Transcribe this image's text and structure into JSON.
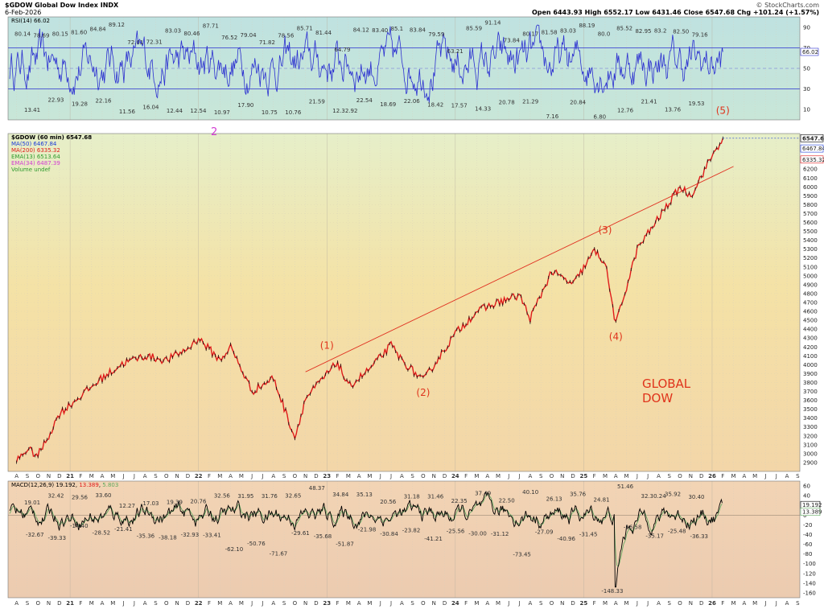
{
  "header": {
    "symbol_line": "$GDOW Global Dow Index INDX",
    "date": "6-Feb-2026",
    "source": "© StockCharts.com",
    "quote": "Open 6443.93  High 6552.17  Low 6431.46  Close 6547.68  Chg +101.24 (+1.57%)"
  },
  "colors": {
    "rsi_line": "#2b2fd0",
    "price": "#e01b1b",
    "ma50": "#1b3bd8",
    "ma200": "#e01b1b",
    "ema13": "#2e9a2e",
    "ema34": "#d23bd2",
    "macd_line": "#000000",
    "signal_line": "#5ea95e",
    "trendline": "#e03020",
    "label_red": "#e0341c",
    "label_magenta": "#d23bd2"
  },
  "chart_data": [
    {
      "type": "line",
      "title": "RSI(14) 66.02",
      "series": [
        {
          "name": "RSI(14)",
          "last": 66.02
        }
      ],
      "ylim": [
        0,
        100
      ],
      "yticks": [
        10,
        30,
        50,
        70,
        90
      ],
      "levels": [
        30,
        70
      ],
      "annotations": [
        "80.14",
        "78.69",
        "80.15",
        "81.60",
        "84.84",
        "89.12",
        "72.01",
        "72.31",
        "83.03",
        "80.46",
        "87.71",
        "76.52",
        "79.04",
        "71.82",
        "78.56",
        "85.71",
        "81.44",
        "64.79",
        "84.12",
        "83.40",
        "85.1",
        "83.84",
        "79.59",
        "63.21",
        "85.59",
        "91.14",
        "73.84",
        "80.17",
        "81.58",
        "83.03",
        "88.19",
        "80.0",
        "85.52",
        "82.95",
        "83.2",
        "82.50",
        "79.16",
        "13.41",
        "22.93",
        "19.28",
        "22.16",
        "11.56",
        "16.04",
        "12.44",
        "12.54",
        "10.97",
        "17.90",
        "10.75",
        "10.76",
        "21.59",
        "12.32.92",
        "22.54",
        "18.69",
        "22.06",
        "18.42",
        "17.57",
        "14.33",
        "20.78",
        "21.29",
        "7.16",
        "20.84",
        "6.80",
        "12.76",
        "21.41",
        "13.76",
        "19.53"
      ],
      "last_value_tag": "66.02"
    },
    {
      "type": "line",
      "title": "$GDOW (60 min) 6547.68",
      "series": [
        {
          "name": "MA(50) 6467.84"
        },
        {
          "name": "MA(200) 6335.32"
        },
        {
          "name": "EMA(13) 6513.64"
        },
        {
          "name": "EMA(34) 6487.39"
        },
        {
          "name": "Volume undef"
        }
      ],
      "price_path": [
        {
          "x": "2020-08",
          "y": 2920
        },
        {
          "x": "2020-09",
          "y": 3050
        },
        {
          "x": "2020-10",
          "y": 2980
        },
        {
          "x": "2020-11",
          "y": 3200
        },
        {
          "x": "2020-12",
          "y": 3450
        },
        {
          "x": "2021-02",
          "y": 3650
        },
        {
          "x": "2021-04",
          "y": 3850
        },
        {
          "x": "2021-06",
          "y": 4020
        },
        {
          "x": "2021-08",
          "y": 4100
        },
        {
          "x": "2021-10",
          "y": 4050
        },
        {
          "x": "2021-12",
          "y": 4180
        },
        {
          "x": "2022-01",
          "y": 4300
        },
        {
          "x": "2022-03",
          "y": 4050
        },
        {
          "x": "2022-04",
          "y": 4200
        },
        {
          "x": "2022-06",
          "y": 3700
        },
        {
          "x": "2022-08",
          "y": 3850
        },
        {
          "x": "2022-10",
          "y": 3180
        },
        {
          "x": "2022-11",
          "y": 3620
        },
        {
          "x": "2023-02",
          "y": 4030
        },
        {
          "x": "2023-03",
          "y": 3750
        },
        {
          "x": "2023-05",
          "y": 3950
        },
        {
          "x": "2023-07",
          "y": 4220
        },
        {
          "x": "2023-08",
          "y": 4050
        },
        {
          "x": "2023-10",
          "y": 3820
        },
        {
          "x": "2024-01",
          "y": 4350
        },
        {
          "x": "2024-03",
          "y": 4600
        },
        {
          "x": "2024-05",
          "y": 4700
        },
        {
          "x": "2024-07",
          "y": 4780
        },
        {
          "x": "2024-08",
          "y": 4520
        },
        {
          "x": "2024-10",
          "y": 5050
        },
        {
          "x": "2024-12",
          "y": 4900
        },
        {
          "x": "2025-02",
          "y": 5280
        },
        {
          "x": "2025-03",
          "y": 5150
        },
        {
          "x": "2025-04",
          "y": 4450
        },
        {
          "x": "2025-06",
          "y": 5300
        },
        {
          "x": "2025-08",
          "y": 5650
        },
        {
          "x": "2025-10",
          "y": 6000
        },
        {
          "x": "2025-11",
          "y": 5900
        },
        {
          "x": "2026-01",
          "y": 6350
        },
        {
          "x": "2026-02",
          "y": 6547.68
        }
      ],
      "ylim": [
        2800,
        6600
      ],
      "yticks": [
        2900,
        3000,
        3100,
        3200,
        3300,
        3400,
        3500,
        3600,
        3700,
        3800,
        3900,
        4000,
        4100,
        4200,
        4300,
        4400,
        4500,
        4600,
        4700,
        4800,
        4900,
        5000,
        5100,
        5200,
        5300,
        5400,
        5500,
        5600,
        5700,
        5800,
        5900,
        6000,
        6100,
        6200
      ],
      "trendline": [
        {
          "x": "2022-11",
          "y": 3920
        },
        {
          "x": "2026-03",
          "y": 6230
        }
      ],
      "wave_labels": [
        {
          "text": "(1)",
          "x": "2023-01",
          "y": 4180
        },
        {
          "text": "(2)",
          "x": "2023-10",
          "y": 3650
        },
        {
          "text": "(3)",
          "x": "2025-03",
          "y": 5480
        },
        {
          "text": "(4)",
          "x": "2025-04",
          "y": 4280
        },
        {
          "text": "(5)",
          "x": "2026-02",
          "y": 6820
        }
      ],
      "annotation_2": "2",
      "title_text": [
        "GLOBAL",
        "DOW"
      ],
      "last_value_tags": [
        "6547.68",
        "6467.84",
        "6335.32"
      ]
    },
    {
      "type": "line",
      "title": "MACD(12,26,9) 19.192, 13.389, 5.803",
      "title_parts": [
        "MACD(12,26,9) 19.192, ",
        "13.389",
        ", ",
        "5.803"
      ],
      "series": [
        {
          "name": "MACD line"
        },
        {
          "name": "Signal"
        }
      ],
      "ylim": [
        -170,
        70
      ],
      "yticks": [
        60,
        40,
        20,
        0,
        -20,
        -40,
        -60,
        -80,
        -100,
        -120,
        -140,
        -160
      ],
      "annotations": [
        "19.01",
        "32.42",
        "29.56",
        "33.60",
        "12.27",
        "17.03",
        "19.39",
        "20.76",
        "32.56",
        "31.95",
        "31.76",
        "32.65",
        "48.37",
        "34.84",
        "35.13",
        "20.56",
        "31.18",
        "31.46",
        "22.35",
        "37.49",
        "22.50",
        "40.10",
        "26.13",
        "35.76",
        "24.81",
        "51.46",
        "32.30.24",
        "35.92",
        "30.40",
        "-32.67",
        "-39.33",
        "-14.40",
        "-28.52",
        "-21.41",
        "-35.36",
        "-38.18",
        "-32.93",
        "-33.41",
        "-62.10",
        "-50.76",
        "-71.67",
        "-29.61",
        "-35.68",
        "-51.87",
        "-21.98",
        "-30.84",
        "-23.82",
        "-41.21",
        "-25.56",
        "-30.00",
        "-31.12",
        "-73.45",
        "-27.09",
        "-40.96",
        "-31.45",
        "-148.33",
        "-16.58",
        "-35.17",
        "-25.48",
        "-36.33"
      ],
      "last_value_tags": [
        "19.192",
        "13.389"
      ]
    }
  ],
  "x_axis": {
    "ticks": [
      {
        "month": "2020-08",
        "label": "A"
      },
      {
        "month": "2020-09",
        "label": "S"
      },
      {
        "month": "2020-10",
        "label": "O"
      },
      {
        "month": "2020-11",
        "label": "N"
      },
      {
        "month": "2020-12",
        "label": "D"
      },
      {
        "month": "2021-01",
        "label": "21"
      },
      {
        "month": "2021-02",
        "label": "F"
      },
      {
        "month": "2021-03",
        "label": "M"
      },
      {
        "month": "2021-04",
        "label": "A"
      },
      {
        "month": "2021-05",
        "label": "M"
      },
      {
        "month": "2021-06",
        "label": "J"
      },
      {
        "month": "2021-07",
        "label": "J"
      },
      {
        "month": "2021-08",
        "label": "A"
      },
      {
        "month": "2021-09",
        "label": "S"
      },
      {
        "month": "2021-10",
        "label": "O"
      },
      {
        "month": "2021-11",
        "label": "N"
      },
      {
        "month": "2021-12",
        "label": "D"
      },
      {
        "month": "2022-01",
        "label": "22"
      },
      {
        "month": "2022-02",
        "label": "F"
      },
      {
        "month": "2022-03",
        "label": "M"
      },
      {
        "month": "2022-04",
        "label": "A"
      },
      {
        "month": "2022-05",
        "label": "M"
      },
      {
        "month": "2022-06",
        "label": "J"
      },
      {
        "month": "2022-07",
        "label": "J"
      },
      {
        "month": "2022-08",
        "label": "A"
      },
      {
        "month": "2022-09",
        "label": "S"
      },
      {
        "month": "2022-10",
        "label": "O"
      },
      {
        "month": "2022-11",
        "label": "N"
      },
      {
        "month": "2022-12",
        "label": "D"
      },
      {
        "month": "2023-01",
        "label": "23"
      },
      {
        "month": "2023-02",
        "label": "F"
      },
      {
        "month": "2023-03",
        "label": "M"
      },
      {
        "month": "2023-04",
        "label": "A"
      },
      {
        "month": "2023-05",
        "label": "M"
      },
      {
        "month": "2023-06",
        "label": "J"
      },
      {
        "month": "2023-07",
        "label": "J"
      },
      {
        "month": "2023-08",
        "label": "A"
      },
      {
        "month": "2023-09",
        "label": "S"
      },
      {
        "month": "2023-10",
        "label": "O"
      },
      {
        "month": "2023-11",
        "label": "N"
      },
      {
        "month": "2023-12",
        "label": "D"
      },
      {
        "month": "2024-01",
        "label": "24"
      },
      {
        "month": "2024-02",
        "label": "F"
      },
      {
        "month": "2024-03",
        "label": "M"
      },
      {
        "month": "2024-04",
        "label": "A"
      },
      {
        "month": "2024-05",
        "label": "M"
      },
      {
        "month": "2024-06",
        "label": "J"
      },
      {
        "month": "2024-07",
        "label": "J"
      },
      {
        "month": "2024-08",
        "label": "A"
      },
      {
        "month": "2024-09",
        "label": "S"
      },
      {
        "month": "2024-10",
        "label": "O"
      },
      {
        "month": "2024-11",
        "label": "N"
      },
      {
        "month": "2024-12",
        "label": "D"
      },
      {
        "month": "2025-01",
        "label": "25"
      },
      {
        "month": "2025-02",
        "label": "F"
      },
      {
        "month": "2025-03",
        "label": "M"
      },
      {
        "month": "2025-04",
        "label": "A"
      },
      {
        "month": "2025-05",
        "label": "M"
      },
      {
        "month": "2025-06",
        "label": "J"
      },
      {
        "month": "2025-07",
        "label": "J"
      },
      {
        "month": "2025-08",
        "label": "A"
      },
      {
        "month": "2025-09",
        "label": "S"
      },
      {
        "month": "2025-10",
        "label": "O"
      },
      {
        "month": "2025-11",
        "label": "N"
      },
      {
        "month": "2025-12",
        "label": "D"
      },
      {
        "month": "2026-01",
        "label": "26"
      },
      {
        "month": "2026-02",
        "label": "F"
      },
      {
        "month": "2026-03",
        "label": "M"
      },
      {
        "month": "2026-04",
        "label": "A"
      },
      {
        "month": "2026-05",
        "label": "M"
      },
      {
        "month": "2026-06",
        "label": "J"
      },
      {
        "month": "2026-07",
        "label": "J"
      },
      {
        "month": "2026-08",
        "label": "A"
      },
      {
        "month": "2026-09",
        "label": "S"
      }
    ]
  }
}
